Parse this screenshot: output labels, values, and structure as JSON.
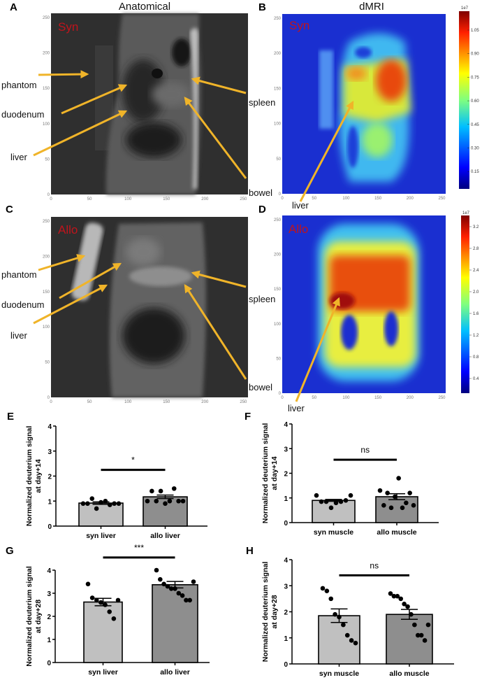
{
  "panels": {
    "A": {
      "label": "A",
      "title": "Anatomical",
      "tag": "Syn"
    },
    "B": {
      "label": "B",
      "title": "dMRI",
      "tag": "Syn",
      "colorbar_exp": "1e7",
      "colorbar_ticks": [
        "1.05",
        "0.90",
        "0.75",
        "0.60",
        "0.45",
        "0.30",
        "0.15"
      ]
    },
    "C": {
      "label": "C",
      "tag": "Allo"
    },
    "D": {
      "label": "D",
      "tag": "Allo",
      "colorbar_exp": "1e7",
      "colorbar_ticks": [
        "3.2",
        "2.8",
        "2.4",
        "2.0",
        "1.6",
        "1.2",
        "0.8",
        "0.4"
      ]
    },
    "E": {
      "label": "E"
    },
    "F": {
      "label": "F"
    },
    "G": {
      "label": "G"
    },
    "H": {
      "label": "H"
    }
  },
  "annotations": {
    "phantom": "phantom",
    "duodenum": "duodenum",
    "liver": "liver",
    "spleen": "spleen",
    "bowel": "bowel"
  },
  "image_axis_ticks": [
    "0",
    "50",
    "100",
    "150",
    "200",
    "250"
  ],
  "colors": {
    "arrow": "#f0b429",
    "tag": "#c0141c",
    "bar_syn": "#c0c0c0",
    "bar_allo": "#8e8e8e",
    "anatomical_bg": "#2f2f2f",
    "dmri_bg": "#1a2fd0"
  },
  "chart_data": [
    {
      "panel": "E",
      "type": "bar",
      "ylabel": [
        "Normalized deuterium signal",
        "at day+14"
      ],
      "ylim": [
        0,
        4
      ],
      "yticks": [
        "0",
        "1",
        "2",
        "3",
        "4"
      ],
      "categories": [
        "syn liver",
        "allo liver"
      ],
      "values": [
        0.92,
        1.17
      ],
      "sem": [
        0.05,
        0.07
      ],
      "points": [
        [
          0.9,
          0.9,
          1.1,
          0.7,
          0.95,
          1.0,
          0.85,
          0.9,
          0.9
        ],
        [
          1.0,
          1.4,
          1.0,
          1.4,
          0.9,
          1.0,
          1.5,
          1.0,
          1.0
        ]
      ],
      "significance": {
        "label": "*",
        "y": 2.25
      }
    },
    {
      "panel": "F",
      "type": "bar",
      "ylabel": [
        "Normalized deuterium signal",
        "at day+14"
      ],
      "ylim": [
        0,
        4
      ],
      "yticks": [
        "0",
        "1",
        "2",
        "3",
        "4"
      ],
      "categories": [
        "syn muscle",
        "allo muscle"
      ],
      "values": [
        0.9,
        1.05
      ],
      "sem": [
        0.04,
        0.12
      ],
      "points": [
        [
          1.1,
          0.85,
          0.85,
          0.6,
          0.8,
          0.85,
          0.9,
          1.1
        ],
        [
          1.3,
          0.7,
          1.2,
          0.6,
          1.05,
          1.8,
          0.6,
          0.8,
          1.2,
          0.7
        ]
      ],
      "significance": {
        "label": "ns",
        "y": 2.55
      }
    },
    {
      "panel": "G",
      "type": "bar",
      "ylabel": [
        "Normalized deuterium signal",
        "at day+28"
      ],
      "ylim": [
        0,
        4
      ],
      "yticks": [
        "0",
        "1",
        "2",
        "3",
        "4"
      ],
      "categories": [
        "syn liver",
        "allo liver"
      ],
      "values": [
        2.62,
        3.37
      ],
      "sem": [
        0.16,
        0.14
      ],
      "points": [
        [
          3.4,
          2.8,
          2.7,
          2.6,
          2.5,
          2.2,
          1.9,
          2.7
        ],
        [
          4.0,
          3.6,
          3.4,
          3.3,
          3.2,
          3.2,
          3.0,
          2.9,
          2.7,
          2.7,
          3.5
        ]
      ],
      "significance": {
        "label": "***",
        "y": 4.55
      }
    },
    {
      "panel": "H",
      "type": "bar",
      "ylabel": [
        "Normalized deuterium signal",
        "at day+28"
      ],
      "ylim": [
        0,
        4
      ],
      "yticks": [
        "0",
        "1",
        "2",
        "3",
        "4"
      ],
      "categories": [
        "syn muscle",
        "allo muscle"
      ],
      "values": [
        1.85,
        1.9
      ],
      "sem": [
        0.26,
        0.19
      ],
      "points": [
        [
          2.9,
          2.8,
          2.5,
          1.9,
          1.8,
          1.5,
          1.1,
          0.9,
          0.8
        ],
        [
          2.7,
          2.6,
          2.6,
          2.5,
          2.3,
          2.2,
          1.9,
          1.5,
          1.1,
          1.1,
          0.9,
          1.5
        ]
      ],
      "significance": {
        "label": "ns",
        "y": 3.4
      }
    }
  ]
}
